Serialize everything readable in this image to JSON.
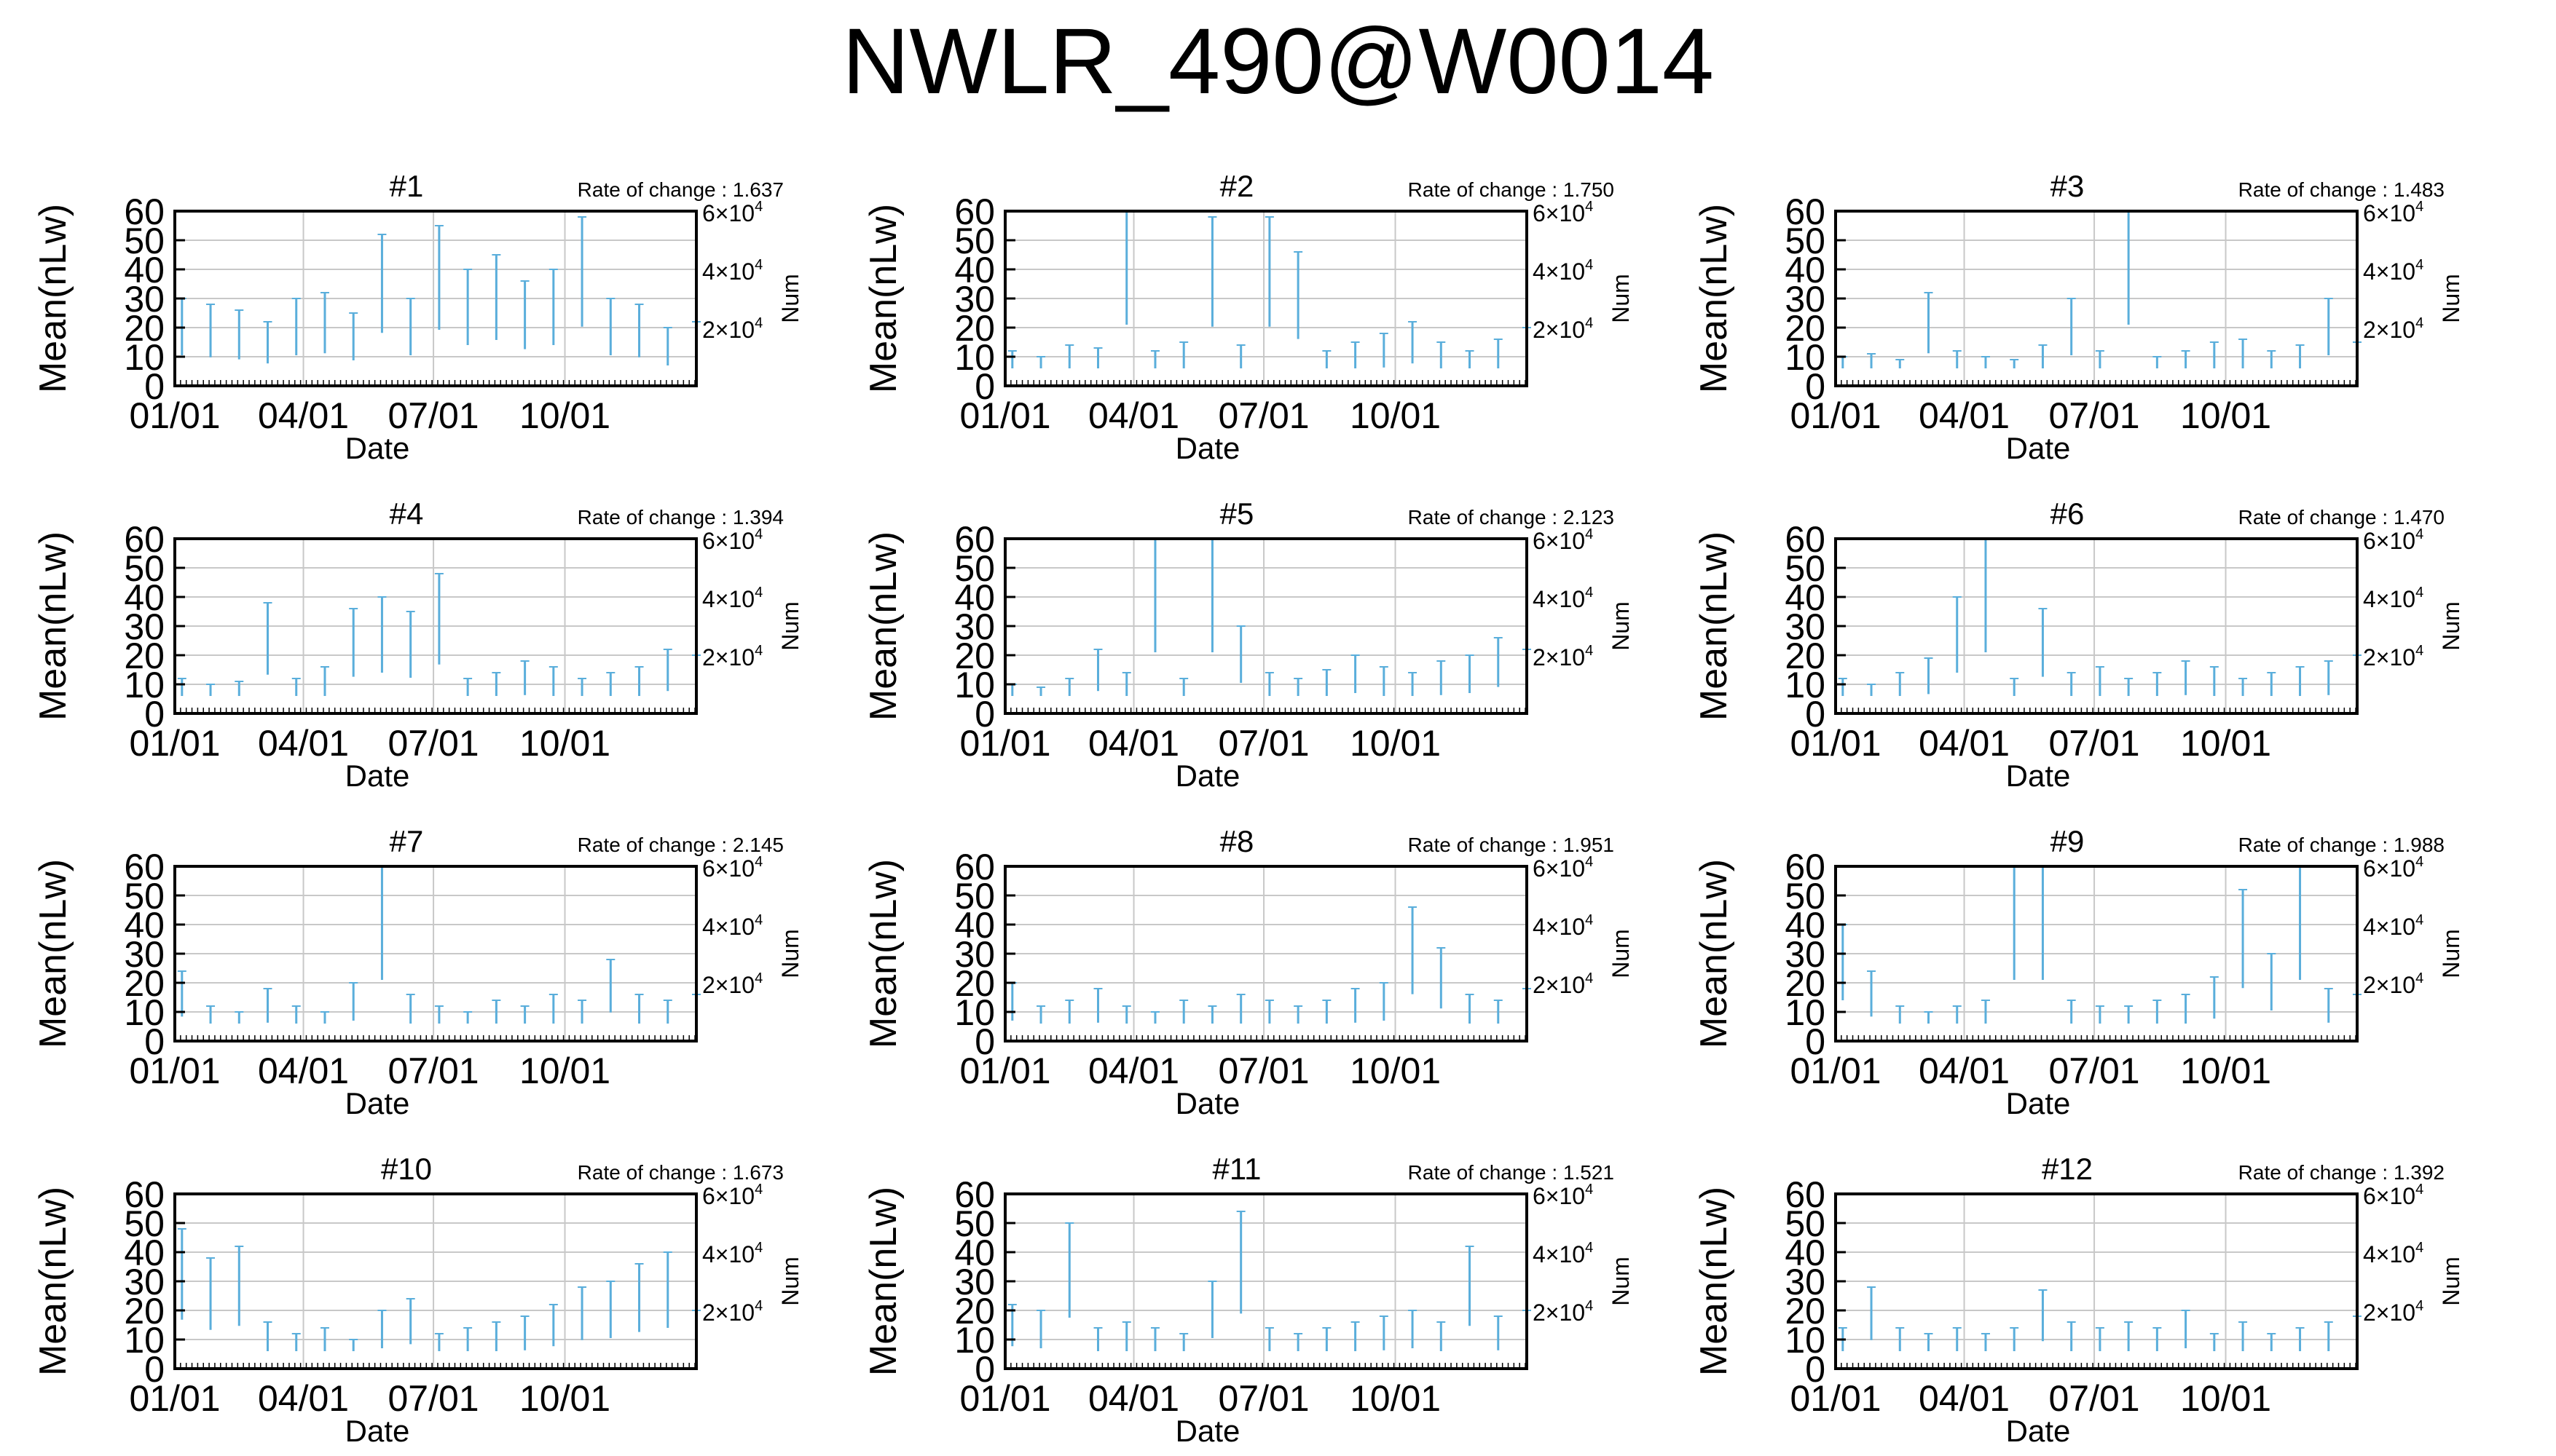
{
  "title": "NWLR_490@W0014",
  "colors": {
    "series": "#5aaedb",
    "grid": "#c8c8c8",
    "frame": "#000000"
  },
  "shared": {
    "ylabel": "Mean(nLw)",
    "xlabel": "Date",
    "y2label": "Num",
    "y_ticks": [
      "0",
      "10",
      "20",
      "30",
      "40",
      "50",
      "60"
    ],
    "y2_ticks": [
      {
        "base": "2×10",
        "exp": "4"
      },
      {
        "base": "4×10",
        "exp": "4"
      },
      {
        "base": "6×10",
        "exp": "4"
      }
    ],
    "x_ticks": [
      "01/01",
      "04/01",
      "07/01",
      "10/01"
    ]
  },
  "chart_data": [
    {
      "type": "scatter",
      "title": "#1",
      "rate_label": "Rate of change : 1.637",
      "ylim": [
        0,
        60
      ],
      "xlim_days": [
        0,
        365
      ],
      "x": [
        0,
        20,
        40,
        60,
        80,
        100,
        120,
        140,
        160,
        180,
        200,
        220,
        240,
        260,
        280,
        300,
        320,
        340,
        360
      ],
      "y": [
        30,
        28,
        26,
        22,
        30,
        32,
        25,
        52,
        30,
        55,
        40,
        45,
        36,
        40,
        58,
        30,
        28,
        20,
        22
      ]
    },
    {
      "type": "scatter",
      "title": "#2",
      "rate_label": "Rate of change : 1.750",
      "ylim": [
        0,
        60
      ],
      "xlim_days": [
        0,
        365
      ],
      "x": [
        0,
        20,
        40,
        60,
        80,
        100,
        120,
        140,
        160,
        180,
        200,
        220,
        240,
        260,
        280,
        300,
        320,
        340,
        360
      ],
      "y": [
        12,
        10,
        14,
        13,
        60,
        12,
        15,
        58,
        14,
        58,
        46,
        12,
        15,
        18,
        22,
        15,
        12,
        16,
        20
      ]
    },
    {
      "type": "scatter",
      "title": "#3",
      "rate_label": "Rate of change : 1.483",
      "ylim": [
        0,
        60
      ],
      "xlim_days": [
        0,
        365
      ],
      "x": [
        0,
        20,
        40,
        60,
        80,
        100,
        120,
        140,
        160,
        180,
        200,
        220,
        240,
        260,
        280,
        300,
        320,
        340,
        360
      ],
      "y": [
        10,
        11,
        9,
        32,
        12,
        10,
        9,
        14,
        30,
        12,
        60,
        10,
        12,
        15,
        16,
        12,
        14,
        30,
        15
      ]
    },
    {
      "type": "scatter",
      "title": "#4",
      "rate_label": "Rate of change : 1.394",
      "ylim": [
        0,
        60
      ],
      "xlim_days": [
        0,
        365
      ],
      "x": [
        0,
        20,
        40,
        60,
        80,
        100,
        120,
        140,
        160,
        180,
        200,
        220,
        240,
        260,
        280,
        300,
        320,
        340,
        360
      ],
      "y": [
        12,
        10,
        11,
        38,
        12,
        16,
        36,
        40,
        35,
        48,
        12,
        14,
        18,
        16,
        12,
        14,
        16,
        22,
        20
      ]
    },
    {
      "type": "scatter",
      "title": "#5",
      "rate_label": "Rate of change : 2.123",
      "ylim": [
        0,
        60
      ],
      "xlim_days": [
        0,
        365
      ],
      "x": [
        0,
        20,
        40,
        60,
        80,
        100,
        120,
        140,
        160,
        180,
        200,
        220,
        240,
        260,
        280,
        300,
        320,
        340,
        360
      ],
      "y": [
        10,
        9,
        12,
        22,
        14,
        60,
        12,
        60,
        30,
        14,
        12,
        15,
        20,
        16,
        14,
        18,
        20,
        26,
        22
      ]
    },
    {
      "type": "scatter",
      "title": "#6",
      "rate_label": "Rate of change : 1.470",
      "ylim": [
        0,
        60
      ],
      "xlim_days": [
        0,
        365
      ],
      "x": [
        0,
        20,
        40,
        60,
        80,
        100,
        120,
        140,
        160,
        180,
        200,
        220,
        240,
        260,
        280,
        300,
        320,
        340,
        360
      ],
      "y": [
        12,
        10,
        14,
        19,
        40,
        60,
        12,
        36,
        14,
        16,
        12,
        14,
        18,
        16,
        12,
        14,
        16,
        18,
        20
      ]
    },
    {
      "type": "scatter",
      "title": "#7",
      "rate_label": "Rate of change : 2.145",
      "ylim": [
        0,
        60
      ],
      "xlim_days": [
        0,
        365
      ],
      "x": [
        0,
        20,
        40,
        60,
        80,
        100,
        120,
        140,
        160,
        180,
        200,
        220,
        240,
        260,
        280,
        300,
        320,
        340,
        360
      ],
      "y": [
        24,
        12,
        10,
        18,
        12,
        10,
        20,
        60,
        16,
        12,
        10,
        14,
        12,
        16,
        14,
        28,
        16,
        14,
        16
      ]
    },
    {
      "type": "scatter",
      "title": "#8",
      "rate_label": "Rate of change : 1.951",
      "ylim": [
        0,
        60
      ],
      "xlim_days": [
        0,
        365
      ],
      "x": [
        0,
        20,
        40,
        60,
        80,
        100,
        120,
        140,
        160,
        180,
        200,
        220,
        240,
        260,
        280,
        300,
        320,
        340,
        360
      ],
      "y": [
        20,
        12,
        14,
        18,
        12,
        10,
        14,
        12,
        16,
        14,
        12,
        14,
        18,
        20,
        46,
        32,
        16,
        14,
        18
      ]
    },
    {
      "type": "scatter",
      "title": "#9",
      "rate_label": "Rate of change : 1.988",
      "ylim": [
        0,
        60
      ],
      "xlim_days": [
        0,
        365
      ],
      "x": [
        0,
        20,
        40,
        60,
        80,
        100,
        120,
        140,
        160,
        180,
        200,
        220,
        240,
        260,
        280,
        300,
        320,
        340,
        360
      ],
      "y": [
        40,
        24,
        12,
        10,
        12,
        14,
        60,
        60,
        14,
        12,
        12,
        14,
        16,
        22,
        52,
        30,
        60,
        18,
        16
      ]
    },
    {
      "type": "scatter",
      "title": "#10",
      "rate_label": "Rate of change : 1.673",
      "ylim": [
        0,
        60
      ],
      "xlim_days": [
        0,
        365
      ],
      "x": [
        0,
        20,
        40,
        60,
        80,
        100,
        120,
        140,
        160,
        180,
        200,
        220,
        240,
        260,
        280,
        300,
        320,
        340,
        360
      ],
      "y": [
        48,
        38,
        42,
        16,
        12,
        14,
        10,
        20,
        24,
        12,
        14,
        16,
        18,
        22,
        28,
        30,
        36,
        40,
        20
      ]
    },
    {
      "type": "scatter",
      "title": "#11",
      "rate_label": "Rate of change : 1.521",
      "ylim": [
        0,
        60
      ],
      "xlim_days": [
        0,
        365
      ],
      "x": [
        0,
        20,
        40,
        60,
        80,
        100,
        120,
        140,
        160,
        180,
        200,
        220,
        240,
        260,
        280,
        300,
        320,
        340,
        360
      ],
      "y": [
        22,
        20,
        50,
        14,
        16,
        14,
        12,
        30,
        54,
        14,
        12,
        14,
        16,
        18,
        20,
        16,
        42,
        18,
        20
      ]
    },
    {
      "type": "scatter",
      "title": "#12",
      "rate_label": "Rate of change : 1.392",
      "ylim": [
        0,
        60
      ],
      "xlim_days": [
        0,
        365
      ],
      "x": [
        0,
        20,
        40,
        60,
        80,
        100,
        120,
        140,
        160,
        180,
        200,
        220,
        240,
        260,
        280,
        300,
        320,
        340,
        360
      ],
      "y": [
        14,
        28,
        14,
        12,
        14,
        12,
        14,
        27,
        16,
        14,
        16,
        14,
        20,
        12,
        16,
        12,
        14,
        16,
        18
      ]
    }
  ]
}
